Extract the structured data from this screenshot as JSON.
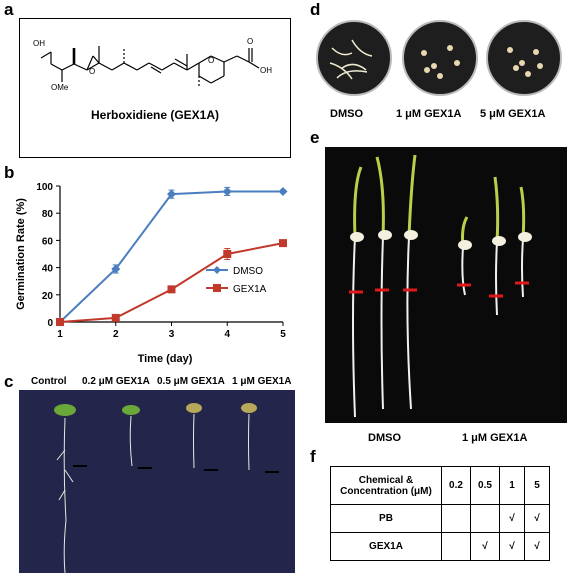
{
  "panel_labels": {
    "a": "a",
    "b": "b",
    "c": "c",
    "d": "d",
    "e": "e",
    "f": "f"
  },
  "panel_a": {
    "compound_label": "Herboxidiene (GEX1A)",
    "atoms": {
      "oh": "OH",
      "ome": "OMe",
      "o_epoxide": "O",
      "o_ring": "O",
      "o_acid": "O",
      "oh_acid": "OH"
    }
  },
  "chart_data": {
    "type": "line",
    "x": [
      1,
      2,
      3,
      4,
      5
    ],
    "xlabel": "Time (day)",
    "ylabel": "Germination Rate (%)",
    "xlim": [
      1,
      5
    ],
    "ylim": [
      0,
      100
    ],
    "yticks": [
      0,
      20,
      40,
      60,
      80,
      100
    ],
    "xticks": [
      1,
      2,
      3,
      4,
      5
    ],
    "legend_position": "lower-right",
    "series": [
      {
        "name": "DMSO",
        "values": [
          0,
          39,
          94,
          96,
          96
        ],
        "errors": [
          0,
          3,
          3,
          3,
          1
        ],
        "color": "#4a7ebf",
        "marker": "diamond"
      },
      {
        "name": "GEX1A",
        "values": [
          0,
          3,
          24,
          50,
          58
        ],
        "errors": [
          0,
          1,
          2,
          4,
          2
        ],
        "color": "#c0392b",
        "marker": "square"
      }
    ]
  },
  "panel_c": {
    "labels": [
      "Control",
      "0.2 μM GEX1A",
      "0.5 μM GEX1A",
      "1 μM GEX1A"
    ]
  },
  "panel_d": {
    "labels": [
      "DMSO",
      "1 μM GEX1A",
      "5 μM GEX1A"
    ]
  },
  "panel_e": {
    "labels": [
      "DMSO",
      "1 μM GEX1A"
    ]
  },
  "panel_f": {
    "header": [
      "Chemical & Concentration (μM)",
      "0.2",
      "0.5",
      "1",
      "5"
    ],
    "rows": [
      {
        "name": "PB",
        "cells": [
          "",
          "",
          "√",
          "√"
        ]
      },
      {
        "name": "GEX1A",
        "cells": [
          "",
          "√",
          "√",
          "√"
        ]
      }
    ]
  }
}
